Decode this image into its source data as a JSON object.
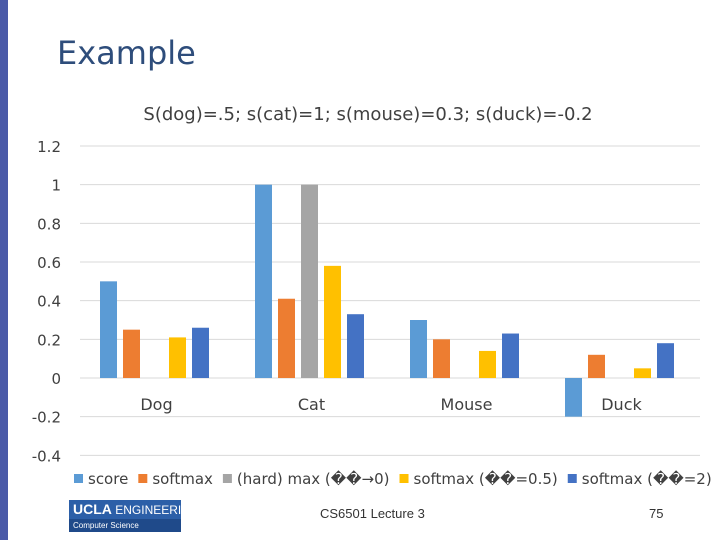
{
  "slide": {
    "title": "Example",
    "footer": "CS6501 Lecture 3",
    "page_number": "75"
  },
  "logo": {
    "name": "UCLA",
    "line1": "ENGINEERING",
    "line2": "Computer Science"
  },
  "chart_data": {
    "type": "bar",
    "title": "S(dog)=.5;   s(cat)=1;   s(mouse)=0.3;   s(duck)=-0.2",
    "categories": [
      "Dog",
      "Cat",
      "Mouse",
      "Duck"
    ],
    "series": [
      {
        "name": "score",
        "color": "#5b9bd5",
        "values": [
          0.5,
          1.0,
          0.3,
          -0.2
        ]
      },
      {
        "name": "softmax",
        "color": "#ed7d31",
        "values": [
          0.25,
          0.41,
          0.2,
          0.12
        ]
      },
      {
        "name": "(hard) max (��→0)",
        "color": "#a5a5a5",
        "values": [
          0,
          1.0,
          0,
          0
        ]
      },
      {
        "name": "softmax (��=0.5)",
        "color": "#ffc000",
        "values": [
          0.21,
          0.58,
          0.14,
          0.05
        ]
      },
      {
        "name": "softmax (��=2)",
        "color": "#4472c4",
        "values": [
          0.26,
          0.33,
          0.23,
          0.18
        ]
      }
    ],
    "yticks": [
      "1.2",
      "1",
      "0.8",
      "0.6",
      "0.4",
      "0.2",
      "0",
      "-0.2",
      "-0.4"
    ],
    "ylim": [
      -0.4,
      1.2
    ],
    "grid": true,
    "legend_position": "bottom"
  }
}
